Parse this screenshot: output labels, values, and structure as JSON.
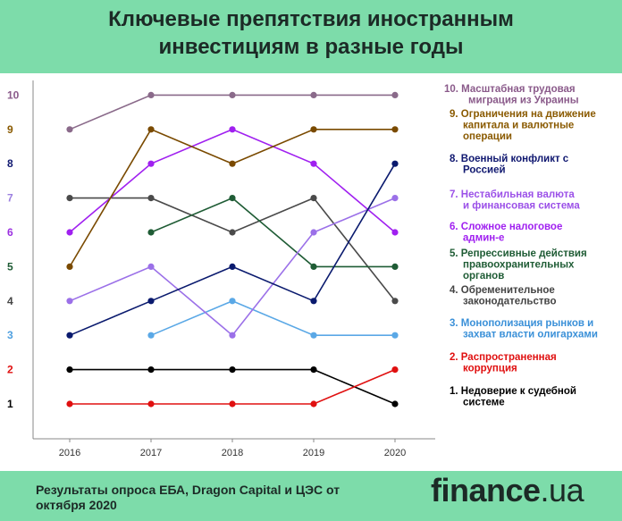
{
  "title_lines": [
    "Ключевые препятствия иностранным",
    "инвестициям в разные годы"
  ],
  "source": "Результаты опроса ЕБА, Dragon Capital и ЦЭС от октября 2020",
  "logo": {
    "main": "finance",
    "suffix": ".ua"
  },
  "chart_data": {
    "type": "line",
    "x": [
      2016,
      2017,
      2018,
      2019,
      2020
    ],
    "xlabel": "",
    "ylabel": "",
    "ylim": [
      0,
      10
    ],
    "yticks": [
      1,
      2,
      3,
      4,
      5,
      6,
      7,
      8,
      9,
      10
    ],
    "ytick_colors": [
      "#000000",
      "#e01010",
      "#4fa0e0",
      "#444444",
      "#1f5c35",
      "#9b30e0",
      "#9b7fe0",
      "#101870",
      "#8a5a00",
      "#8a5a8a"
    ],
    "grid": false,
    "legend_position": "right",
    "series": [
      {
        "name": "1.  Недоверие к судебной системе",
        "color": "#000000",
        "values": [
          2,
          2,
          2,
          2,
          1
        ]
      },
      {
        "name": "2.  Распространенная коррупция",
        "color": "#e01010",
        "values": [
          1,
          1,
          1,
          1,
          2
        ]
      },
      {
        "name": "3.  Монополизация рынков и захват власти олигархами",
        "color": "#5aa8e6",
        "values": [
          null,
          3,
          4,
          3,
          3
        ]
      },
      {
        "name": "4.  Обременительное законодательство",
        "color": "#4a4a4a",
        "values": [
          7,
          7,
          6,
          7,
          4
        ]
      },
      {
        "name": "5.  Репрессивные действия правоохранительных органов",
        "color": "#1f5c35",
        "values": [
          null,
          6,
          7,
          5,
          5
        ]
      },
      {
        "name": "6.  Сложное налоговое админ-е",
        "color": "#a020f0",
        "values": [
          6,
          8,
          9,
          8,
          6
        ]
      },
      {
        "name": "7.  Нестабильная валюта и финансовая система",
        "color": "#9b70e8",
        "values": [
          4,
          5,
          3,
          6,
          7
        ]
      },
      {
        "name": "8.  Военный конфликт с Россией",
        "color": "#0a1a6e",
        "values": [
          3,
          4,
          5,
          4,
          8
        ]
      },
      {
        "name": "9.  Ограничения на движение капитала и валютные операции",
        "color": "#7a4a00",
        "values": [
          5,
          9,
          8,
          9,
          9
        ]
      },
      {
        "name": "10.  Масштабная трудовая миграция из Украины",
        "color": "#8a6a8a",
        "values": [
          9,
          10,
          10,
          10,
          10
        ]
      }
    ],
    "legend": [
      {
        "lines": [
          "10.  Масштабная трудовая",
          "миграция из Украины"
        ],
        "color": "#8a5a8a"
      },
      {
        "lines": [
          "9.  Ограничения на движение",
          "капитала и валютные",
          "операции"
        ],
        "color": "#8a5a00"
      },
      {
        "lines": [
          "8.  Военный конфликт с",
          "Россией"
        ],
        "color": "#101870"
      },
      {
        "lines": [
          "7.  Нестабильная валюта",
          "и финансовая система"
        ],
        "color": "#9b50e8"
      },
      {
        "lines": [
          "6.  Сложное налоговое",
          "админ-е"
        ],
        "color": "#a020f0"
      },
      {
        "lines": [
          "5.  Репрессивные действия",
          "правоохранительных",
          "органов"
        ],
        "color": "#1f5c35"
      },
      {
        "lines": [
          "4.  Обременительное",
          "законодательство"
        ],
        "color": "#444444"
      },
      {
        "lines": [
          "3.  Монополизация рынков и",
          "захват власти олигархами"
        ],
        "color": "#3a90d8"
      },
      {
        "lines": [
          "2.  Распространенная",
          "коррупция"
        ],
        "color": "#e01010"
      },
      {
        "lines": [
          "1.  Недоверие к судебной",
          "системе"
        ],
        "color": "#000000"
      }
    ]
  }
}
